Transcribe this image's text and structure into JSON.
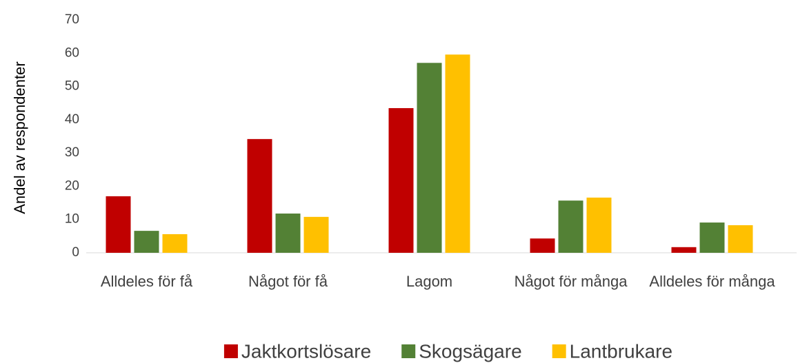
{
  "chart_data": {
    "type": "bar",
    "y_label": "Andel av respondenter",
    "categories": [
      "Alldeles för få",
      "Något för få",
      "Lagom",
      "Något för många",
      "Alldeles för många"
    ],
    "series": [
      {
        "name": "Jaktkortslösare",
        "color": "#c00000",
        "values": [
          17.0,
          34.2,
          43.5,
          4.3,
          1.7
        ]
      },
      {
        "name": "Skogsägare",
        "color": "#538135",
        "values": [
          6.6,
          11.8,
          57.1,
          15.7,
          9.1
        ]
      },
      {
        "name": "Lantbrukare",
        "color": "#ffc000",
        "values": [
          5.6,
          10.8,
          59.6,
          16.6,
          8.3
        ]
      }
    ],
    "ylim": [
      0,
      70
    ],
    "yticks": [
      0,
      10,
      20,
      30,
      40,
      50,
      60,
      70
    ],
    "grid": false,
    "legend": "bottom"
  }
}
